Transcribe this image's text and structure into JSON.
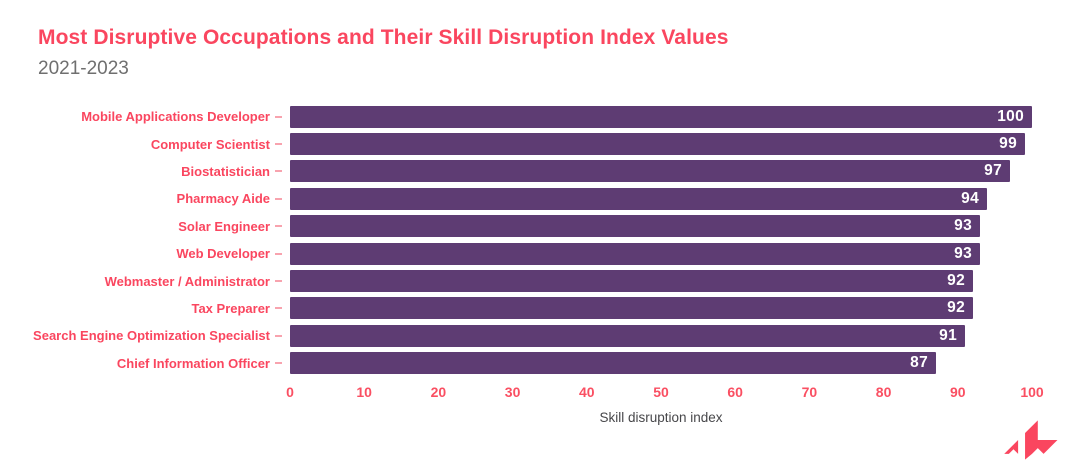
{
  "header": {
    "title": "Most Disruptive Occupations and Their Skill Disruption Index Values",
    "subtitle": "2021-2023"
  },
  "chart_data": {
    "type": "bar",
    "orientation": "horizontal",
    "title": "Most Disruptive Occupations and Their Skill Disruption Index Values",
    "subtitle": "2021-2023",
    "categories": [
      "Mobile Applications Developer",
      "Computer Scientist",
      "Biostatistician",
      "Pharmacy Aide",
      "Solar Engineer",
      "Web Developer",
      "Webmaster / Administrator",
      "Tax Preparer",
      "Search Engine Optimization Specialist",
      "Chief Information Officer"
    ],
    "values": [
      100,
      99,
      97,
      94,
      93,
      93,
      92,
      92,
      91,
      87
    ],
    "xlabel": "Skill disruption index",
    "ylabel": "",
    "xticks": [
      0,
      10,
      20,
      30,
      40,
      50,
      60,
      70,
      80,
      90,
      100
    ],
    "xlim": [
      0,
      100
    ],
    "grid": false,
    "value_labels_shown": true,
    "colors": {
      "bar": "#5e3c73",
      "category_label": "#fa465f",
      "tick_label": "#fa4f62",
      "value_label": "#ffffff",
      "axis_title": "#47474a",
      "title": "#fa465f",
      "subtitle": "#6f6f6f",
      "background": "#ffffff"
    }
  },
  "branding": {
    "logo": "lightcast-mark-icon",
    "logo_color": "#fa465f"
  }
}
